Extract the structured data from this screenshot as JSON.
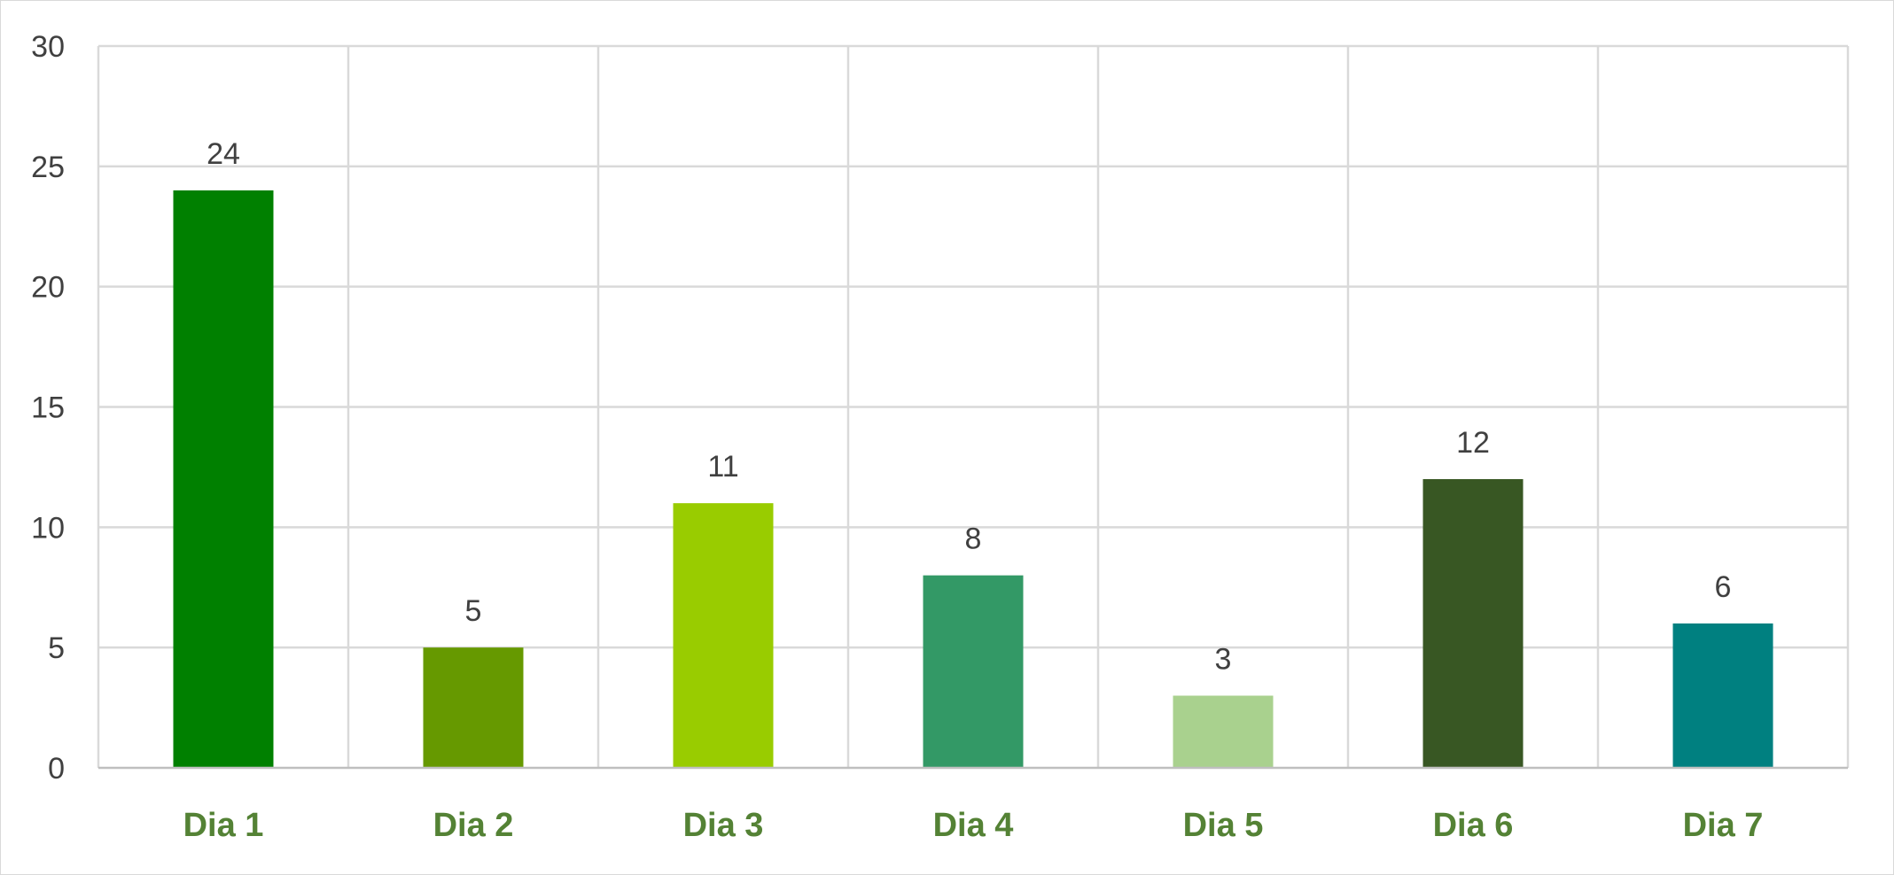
{
  "chart_data": {
    "type": "bar",
    "categories": [
      "Dia 1",
      "Dia 2",
      "Dia 3",
      "Dia 4",
      "Dia 5",
      "Dia 6",
      "Dia 7"
    ],
    "values": [
      24,
      5,
      11,
      8,
      3,
      12,
      6
    ],
    "bar_colors": [
      "#008000",
      "#669900",
      "#99CC00",
      "#339966",
      "#A9D18E",
      "#385723",
      "#008080"
    ],
    "title": "",
    "xlabel": "",
    "ylabel": "",
    "ylim": [
      0,
      30
    ],
    "yticks": [
      0,
      5,
      10,
      15,
      20,
      25,
      30
    ],
    "grid": true,
    "vertical_gridlines": true,
    "legend": "none",
    "data_labels": true,
    "x_tick_color": "#548235",
    "label_color": "#404040",
    "grid_color": "#D9D9D9"
  }
}
